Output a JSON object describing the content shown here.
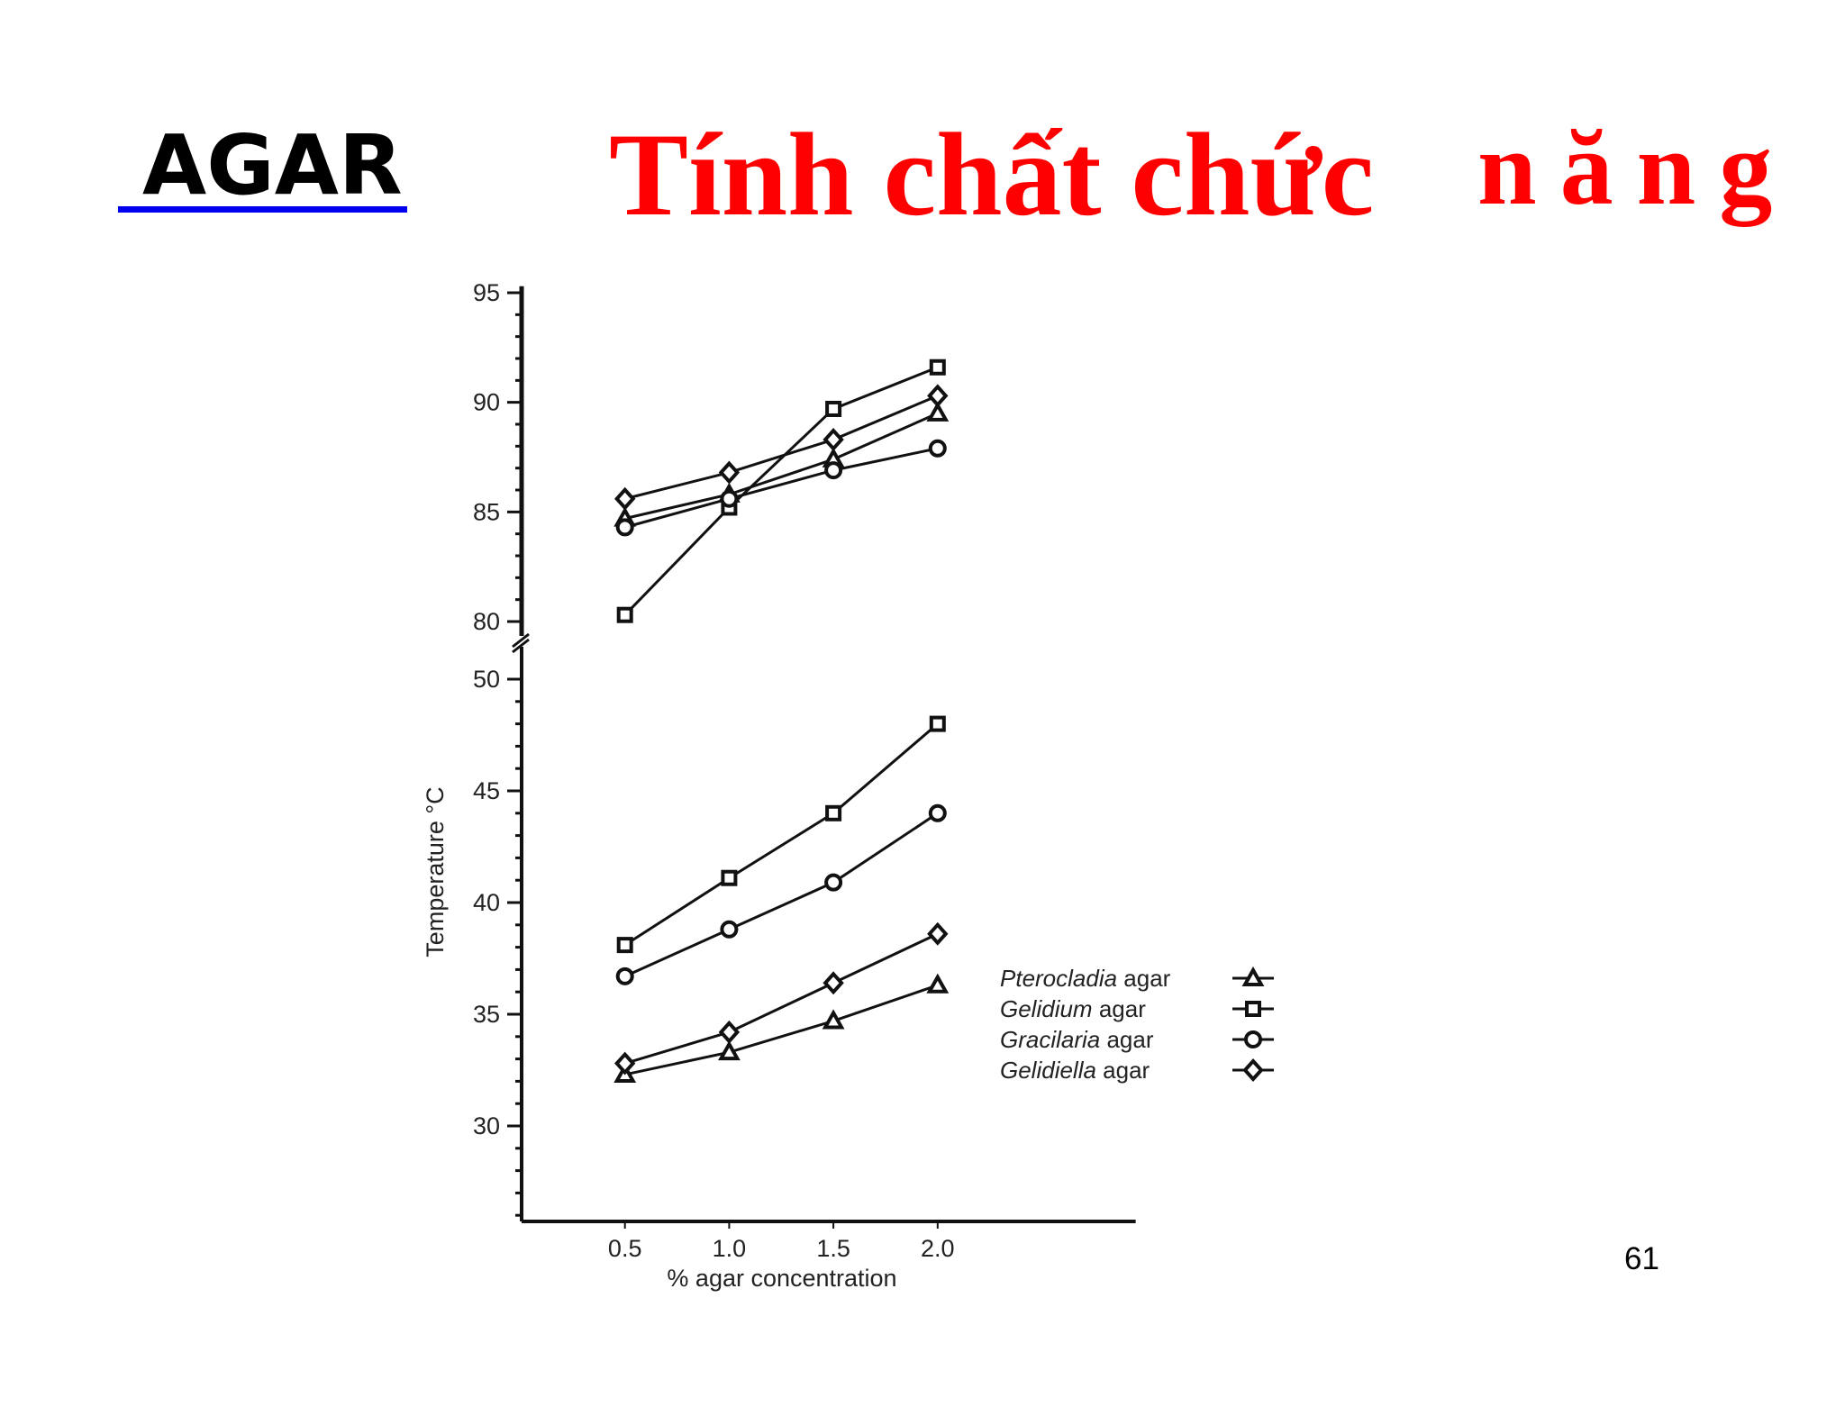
{
  "header": {
    "section": "AGAR",
    "title": "Tính chất chức",
    "title_tail": "năng",
    "underline_color": "#0000ee",
    "title_color": "#ff0000"
  },
  "page_number": "61",
  "chart_data": {
    "type": "line",
    "xlabel": "% agar concentration",
    "ylabel": "Temperature °C",
    "x": [
      0.5,
      1.0,
      1.5,
      2.0
    ],
    "x_tick_labels": [
      "0.5",
      "1.0",
      "1.5",
      "2.0"
    ],
    "xlim": [
      0,
      2.95
    ],
    "y_axis_broken": true,
    "y_upper_ticks": [
      "95",
      "90",
      "85",
      "80"
    ],
    "y_lower_ticks": [
      "50",
      "45",
      "40",
      "35",
      "30"
    ],
    "ylim_upper": [
      80,
      95.3
    ],
    "ylim_lower": [
      25.7,
      50.5
    ],
    "legend_position": "right",
    "legend": [
      {
        "name": "Pterocladia",
        "suffix": " agar",
        "marker": "triangle"
      },
      {
        "name": "Gelidium",
        "suffix": " agar",
        "marker": "square"
      },
      {
        "name": "Gracilaria",
        "suffix": " agar",
        "marker": "circle"
      },
      {
        "name": "Gelidiella",
        "suffix": " agar",
        "marker": "diamond"
      }
    ],
    "series": [
      {
        "name": "Pterocladia agar",
        "marker": "triangle",
        "melting": [
          84.7,
          85.8,
          87.4,
          89.5
        ],
        "gelling": [
          32.3,
          33.3,
          34.7,
          36.3
        ]
      },
      {
        "name": "Gelidium agar",
        "marker": "square",
        "melting": [
          80.3,
          85.2,
          89.7,
          91.6
        ],
        "gelling": [
          38.1,
          41.1,
          44.0,
          48.0
        ]
      },
      {
        "name": "Gracilaria agar",
        "marker": "circle",
        "melting": [
          84.3,
          85.6,
          86.9,
          87.9
        ],
        "gelling": [
          36.7,
          38.8,
          40.9,
          44.0
        ]
      },
      {
        "name": "Gelidiella agar",
        "marker": "diamond",
        "melting": [
          85.6,
          86.8,
          88.3,
          90.3
        ],
        "gelling": [
          32.8,
          34.2,
          36.4,
          38.6
        ]
      }
    ]
  }
}
